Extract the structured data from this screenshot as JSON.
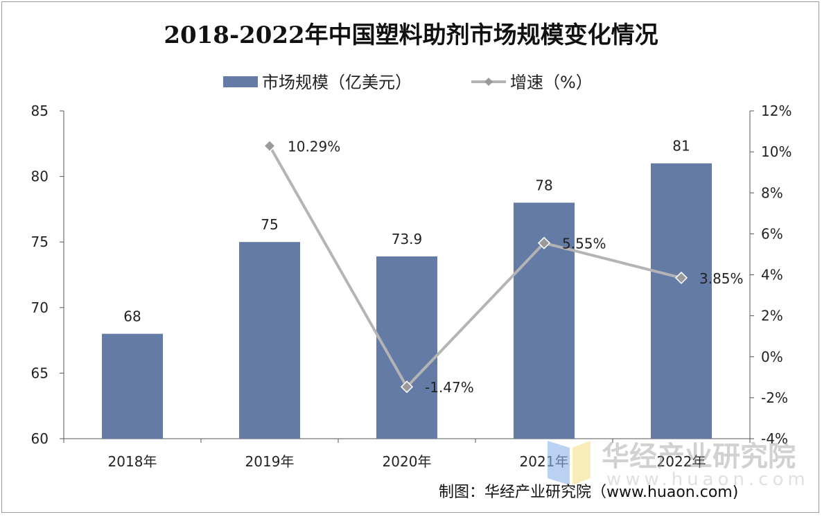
{
  "chart_data": {
    "type": "bar+line",
    "title": "2018-2022年中国塑料助剂市场规模变化情况",
    "categories": [
      "2018年",
      "2019年",
      "2020年",
      "2021年",
      "2022年"
    ],
    "series": [
      {
        "name": "市场规模（亿美元）",
        "type": "bar",
        "axis": "left",
        "values": [
          68,
          75,
          73.9,
          78,
          81
        ],
        "labels": [
          "68",
          "75",
          "73.9",
          "78",
          "81"
        ]
      },
      {
        "name": "增速（%）",
        "type": "line",
        "axis": "right",
        "values": [
          null,
          10.29,
          -1.47,
          5.55,
          3.85
        ],
        "labels": [
          "",
          "10.29%",
          "-1.47%",
          "5.55%",
          "3.85%"
        ]
      }
    ],
    "y_left": {
      "range": [
        60,
        85
      ],
      "ticks": [
        "60",
        "65",
        "70",
        "75",
        "80",
        "85"
      ]
    },
    "y_right": {
      "range": [
        -4,
        12
      ],
      "ticks": [
        "-4%",
        "-2%",
        "0%",
        "2%",
        "4%",
        "6%",
        "8%",
        "10%",
        "12%"
      ]
    },
    "legend_placement": "top",
    "grid": false,
    "colors": {
      "bar": "#647ba6",
      "line": "#b4b4b4",
      "marker": "#9a9a9a"
    }
  },
  "watermark": {
    "logo_text": "华经产业研究院",
    "url": "www.huaon.com"
  },
  "credit": "制图：华经产业研究院（www.huaon.com)"
}
